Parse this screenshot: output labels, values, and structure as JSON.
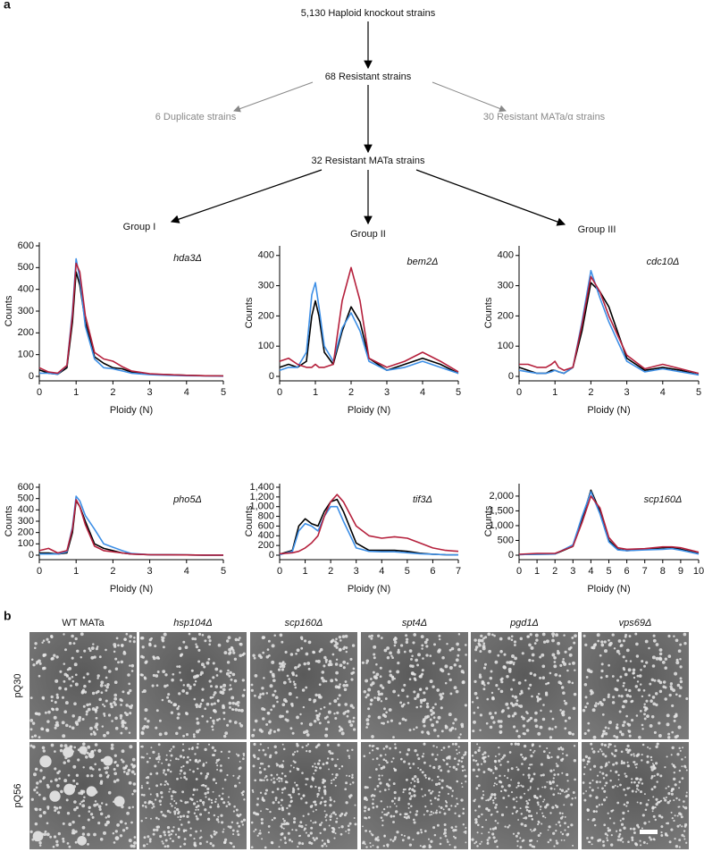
{
  "panel_a": {
    "label": "a",
    "nodes": [
      {
        "label": "5,130 Haploid knockout strains"
      },
      {
        "label": "68 Resistant strains"
      },
      {
        "label": "6 Duplicate strains"
      },
      {
        "label": "30 Resistant MATa/α strains"
      },
      {
        "label": "32 Resistant MATa strains"
      },
      {
        "label": "Group I"
      },
      {
        "label": "Group II"
      },
      {
        "label": "Group III"
      }
    ]
  },
  "chart_data": [
    {
      "type": "line",
      "label": "hda3Δ",
      "xlabel": "Ploidy (N)",
      "ylabel": "Counts",
      "xlim": [
        0,
        5
      ],
      "xticks": [
        0,
        1,
        2,
        3,
        4,
        5
      ],
      "ylim": [
        0,
        600
      ],
      "yticks": [
        0,
        100,
        200,
        300,
        400,
        500,
        600
      ],
      "x": [
        0,
        0.25,
        0.5,
        0.75,
        0.9,
        1.0,
        1.1,
        1.25,
        1.5,
        1.75,
        2,
        2.25,
        2.5,
        3,
        3.5,
        4,
        4.5,
        5
      ],
      "series": [
        {
          "color": "#000000",
          "values": [
            30,
            15,
            10,
            40,
            250,
            480,
            420,
            250,
            90,
            60,
            40,
            35,
            20,
            10,
            8,
            5,
            3,
            2
          ]
        },
        {
          "color": "#3d8fe6",
          "values": [
            15,
            15,
            10,
            50,
            300,
            540,
            450,
            230,
            80,
            40,
            35,
            25,
            15,
            8,
            5,
            3,
            2,
            1
          ]
        },
        {
          "color": "#b5203c",
          "values": [
            40,
            20,
            15,
            50,
            280,
            520,
            480,
            280,
            110,
            80,
            70,
            45,
            25,
            12,
            8,
            5,
            3,
            2
          ]
        }
      ]
    },
    {
      "type": "line",
      "label": "bem2Δ",
      "xlabel": "Ploidy (N)",
      "ylabel": "Counts",
      "xlim": [
        0,
        5
      ],
      "xticks": [
        0,
        1,
        2,
        3,
        4,
        5
      ],
      "ylim": [
        0,
        420
      ],
      "yticks": [
        0,
        100,
        200,
        300,
        400
      ],
      "x": [
        0,
        0.25,
        0.5,
        0.75,
        0.9,
        1.0,
        1.1,
        1.25,
        1.5,
        1.75,
        2,
        2.25,
        2.5,
        3,
        3.5,
        4,
        4.5,
        5
      ],
      "series": [
        {
          "color": "#000000",
          "values": [
            30,
            40,
            30,
            50,
            200,
            250,
            200,
            80,
            40,
            150,
            230,
            180,
            60,
            20,
            40,
            60,
            40,
            10
          ]
        },
        {
          "color": "#3d8fe6",
          "values": [
            20,
            30,
            30,
            80,
            270,
            310,
            230,
            100,
            50,
            160,
            210,
            150,
            50,
            20,
            30,
            50,
            30,
            10
          ]
        },
        {
          "color": "#b5203c",
          "values": [
            50,
            60,
            40,
            30,
            30,
            40,
            30,
            30,
            40,
            250,
            360,
            250,
            60,
            30,
            50,
            80,
            50,
            15
          ]
        }
      ]
    },
    {
      "type": "line",
      "label": "cdc10Δ",
      "xlabel": "Ploidy (N)",
      "ylabel": "Counts",
      "xlim": [
        0,
        5
      ],
      "xticks": [
        0,
        1,
        2,
        3,
        4,
        5
      ],
      "ylim": [
        0,
        420
      ],
      "yticks": [
        0,
        100,
        200,
        300,
        400
      ],
      "x": [
        0,
        0.25,
        0.5,
        0.75,
        0.9,
        1.0,
        1.1,
        1.25,
        1.5,
        1.75,
        2,
        2.25,
        2.5,
        3,
        3.5,
        4,
        4.5,
        5
      ],
      "series": [
        {
          "color": "#000000",
          "values": [
            30,
            20,
            10,
            10,
            20,
            20,
            15,
            10,
            30,
            150,
            310,
            280,
            230,
            60,
            20,
            30,
            20,
            5
          ]
        },
        {
          "color": "#3d8fe6",
          "values": [
            20,
            15,
            10,
            10,
            15,
            20,
            15,
            10,
            30,
            180,
            350,
            260,
            180,
            50,
            15,
            25,
            15,
            5
          ]
        },
        {
          "color": "#b5203c",
          "values": [
            40,
            40,
            30,
            30,
            40,
            50,
            30,
            20,
            30,
            170,
            330,
            280,
            200,
            70,
            25,
            40,
            25,
            10
          ]
        }
      ]
    },
    {
      "type": "line",
      "label": "pho5Δ",
      "xlabel": "Ploidy (N)",
      "ylabel": "Counts",
      "xlim": [
        0,
        5
      ],
      "xticks": [
        0,
        1,
        2,
        3,
        4,
        5
      ],
      "ylim": [
        0,
        600
      ],
      "yticks": [
        0,
        100,
        200,
        300,
        400,
        500,
        600
      ],
      "x": [
        0,
        0.25,
        0.5,
        0.75,
        0.9,
        1.0,
        1.1,
        1.25,
        1.5,
        1.75,
        2,
        2.25,
        2.5,
        3,
        3.5,
        4,
        4.5,
        5
      ],
      "series": [
        {
          "color": "#000000",
          "values": [
            20,
            20,
            10,
            20,
            200,
            480,
            430,
            300,
            100,
            60,
            40,
            20,
            10,
            5,
            3,
            2,
            1,
            1
          ]
        },
        {
          "color": "#3d8fe6",
          "values": [
            10,
            10,
            10,
            30,
            250,
            520,
            480,
            350,
            230,
            100,
            70,
            40,
            15,
            5,
            3,
            2,
            1,
            1
          ]
        },
        {
          "color": "#b5203c",
          "values": [
            40,
            60,
            20,
            40,
            230,
            490,
            430,
            270,
            80,
            40,
            30,
            20,
            10,
            5,
            3,
            2,
            1,
            1
          ]
        }
      ]
    },
    {
      "type": "line",
      "label": "tif3Δ",
      "xlabel": "Ploidy (N)",
      "ylabel": "Counts",
      "xlim": [
        0,
        7
      ],
      "xticks": [
        0,
        1,
        2,
        3,
        4,
        5,
        6,
        7
      ],
      "ylim": [
        0,
        1400
      ],
      "yticks": [
        0,
        200,
        400,
        600,
        800,
        {
          "value": 1000,
          "label": "1,000"
        },
        {
          "value": 1200,
          "label": "1,200"
        },
        {
          "value": 1400,
          "label": "1,400"
        }
      ],
      "x": [
        0,
        0.5,
        0.75,
        1,
        1.25,
        1.5,
        1.75,
        2,
        2.25,
        2.5,
        3,
        3.5,
        4,
        4.5,
        5,
        5.5,
        6,
        6.5,
        7
      ],
      "series": [
        {
          "color": "#000000",
          "values": [
            20,
            100,
            600,
            750,
            650,
            600,
            900,
            1100,
            1150,
            900,
            250,
            100,
            100,
            100,
            80,
            40,
            20,
            10,
            5
          ]
        },
        {
          "color": "#3d8fe6",
          "values": [
            10,
            80,
            500,
            650,
            600,
            500,
            800,
            1000,
            1000,
            700,
            150,
            80,
            70,
            70,
            50,
            30,
            20,
            10,
            5
          ]
        },
        {
          "color": "#b5203c",
          "values": [
            30,
            50,
            80,
            150,
            250,
            400,
            800,
            1100,
            1250,
            1100,
            600,
            400,
            350,
            380,
            350,
            250,
            150,
            100,
            80
          ]
        }
      ]
    },
    {
      "type": "line",
      "label": "scp160Δ",
      "xlabel": "Ploidy (N)",
      "ylabel": "Counts",
      "xlim": [
        0,
        10
      ],
      "xticks": [
        0,
        1,
        2,
        3,
        4,
        5,
        6,
        7,
        8,
        9,
        10
      ],
      "ylim": [
        0,
        2300
      ],
      "yticks": [
        0,
        500,
        {
          "value": 1000,
          "label": "1,000"
        },
        {
          "value": 1500,
          "label": "1,500"
        },
        {
          "value": 2000,
          "label": "2,000"
        }
      ],
      "x": [
        0,
        1,
        2,
        3,
        3.5,
        4,
        4.5,
        5,
        5.5,
        6,
        7,
        8,
        8.5,
        9,
        10
      ],
      "series": [
        {
          "color": "#000000",
          "values": [
            20,
            30,
            40,
            300,
            1200,
            2200,
            1500,
            500,
            200,
            150,
            200,
            250,
            270,
            200,
            50
          ]
        },
        {
          "color": "#3d8fe6",
          "values": [
            20,
            30,
            40,
            350,
            1300,
            2150,
            1400,
            450,
            180,
            150,
            180,
            200,
            220,
            170,
            40
          ]
        },
        {
          "color": "#b5203c",
          "values": [
            30,
            60,
            60,
            300,
            1100,
            2000,
            1600,
            600,
            250,
            200,
            220,
            280,
            280,
            250,
            100
          ]
        }
      ]
    }
  ],
  "panel_b": {
    "label": "b",
    "columns": [
      "WT MATa",
      "hsp104Δ",
      "scp160Δ",
      "spt4Δ",
      "pgd1Δ",
      "vps69Δ"
    ],
    "rows": [
      "pQ30",
      "pQ56"
    ]
  }
}
